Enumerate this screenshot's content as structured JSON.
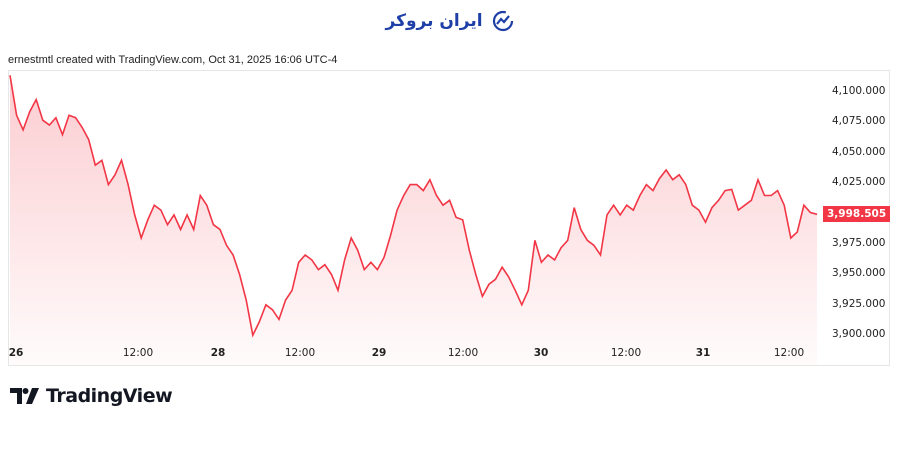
{
  "brand": {
    "text": "ایران بروکر",
    "icon": "chart-trend-icon",
    "color": "#1f3fa8"
  },
  "credit": "ernestmtl created with TradingView.com, Oct 31, 2025 16:06 UTC-4",
  "footer_logo": "TradingView",
  "chart_data": {
    "type": "area",
    "title": "",
    "line_color": "#f23645",
    "fill_color": "#f23645",
    "grid": false,
    "ylim": [
      3890,
      4110
    ],
    "y_ticks": [
      "4,100.000",
      "4,075.000",
      "4,050.000",
      "4,025.000",
      "3,975.000",
      "3,950.000",
      "3,925.000",
      "3,900.000"
    ],
    "y_tick_values": [
      4100,
      4075,
      4050,
      4025,
      3975,
      3950,
      3925,
      3900
    ],
    "x_ticks": [
      "26",
      "12:00",
      "28",
      "12:00",
      "29",
      "12:00",
      "30",
      "12:00",
      "31",
      "12:00"
    ],
    "last_price": "3,998.505",
    "series": [
      {
        "values": [
          4113,
          4080,
          4068,
          4083,
          4093,
          4076,
          4072,
          4078,
          4064,
          4080,
          4078,
          4070,
          4060,
          4039,
          4043,
          4023,
          4031,
          4043,
          4023,
          3998,
          3979,
          3994,
          4006,
          4002,
          3990,
          3998,
          3986,
          3998,
          3986,
          4014,
          4006,
          3990,
          3986,
          3973,
          3965,
          3949,
          3928,
          3899,
          3910,
          3924,
          3920,
          3912,
          3928,
          3936,
          3959,
          3965,
          3961,
          3953,
          3957,
          3949,
          3936,
          3961,
          3979,
          3969,
          3953,
          3959,
          3953,
          3963,
          3981,
          4002,
          4014,
          4023,
          4023,
          4018,
          4027,
          4014,
          4006,
          4010,
          3996,
          3994,
          3969,
          3949,
          3931,
          3941,
          3945,
          3955,
          3947,
          3936,
          3924,
          3936,
          3977,
          3959,
          3965,
          3961,
          3971,
          3977,
          4004,
          3986,
          3977,
          3973,
          3965,
          3998,
          4006,
          3998,
          4006,
          4002,
          4014,
          4023,
          4018,
          4028,
          4035,
          4027,
          4031,
          4023,
          4006,
          4002,
          3992,
          4004,
          4010,
          4018,
          4019,
          4002,
          4006,
          4010,
          4027,
          4014,
          4014,
          4018,
          4006,
          3979,
          3984,
          4006,
          4000,
          3998.5
        ]
      }
    ]
  }
}
